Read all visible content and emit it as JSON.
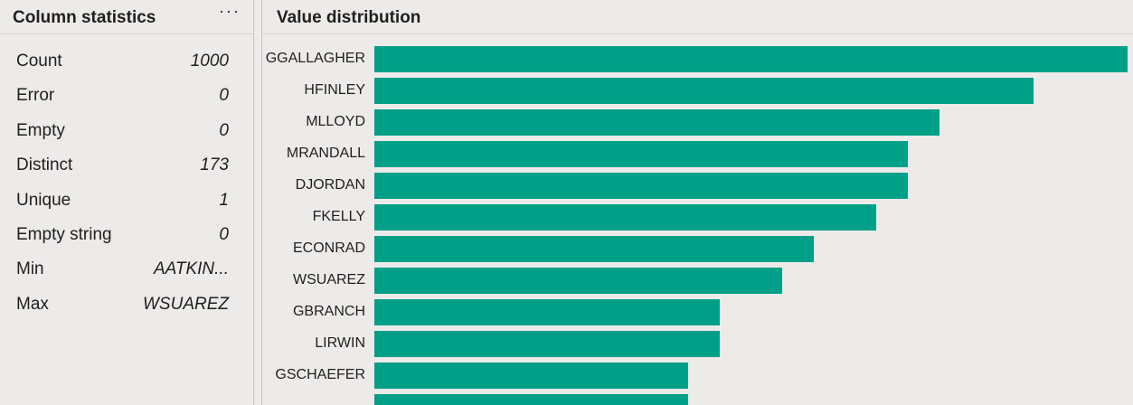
{
  "left_panel": {
    "title": "Column statistics",
    "more_label": "···",
    "stats": [
      {
        "label": "Count",
        "value": "1000"
      },
      {
        "label": "Error",
        "value": "0"
      },
      {
        "label": "Empty",
        "value": "0"
      },
      {
        "label": "Distinct",
        "value": "173"
      },
      {
        "label": "Unique",
        "value": "1"
      },
      {
        "label": "Empty string",
        "value": "0"
      },
      {
        "label": "Min",
        "value": "AATKIN..."
      },
      {
        "label": "Max",
        "value": "WSUAREZ"
      }
    ]
  },
  "right_panel": {
    "title": "Value distribution"
  },
  "colors": {
    "bar": "#00a088",
    "background": "#edebe9"
  },
  "chart_data": {
    "type": "bar",
    "orientation": "horizontal",
    "categories": [
      "GGALLAGHER",
      "HFINLEY",
      "MLLOYD",
      "MRANDALL",
      "DJORDAN",
      "FKELLY",
      "ECONRAD",
      "WSUAREZ",
      "GBRANCH",
      "LIRWIN",
      "GSCHAEFER",
      ""
    ],
    "values": [
      12,
      10.5,
      9,
      8.5,
      8.5,
      8,
      7,
      6.5,
      5.5,
      5.5,
      5,
      5
    ],
    "xlim": [
      0,
      12
    ]
  }
}
